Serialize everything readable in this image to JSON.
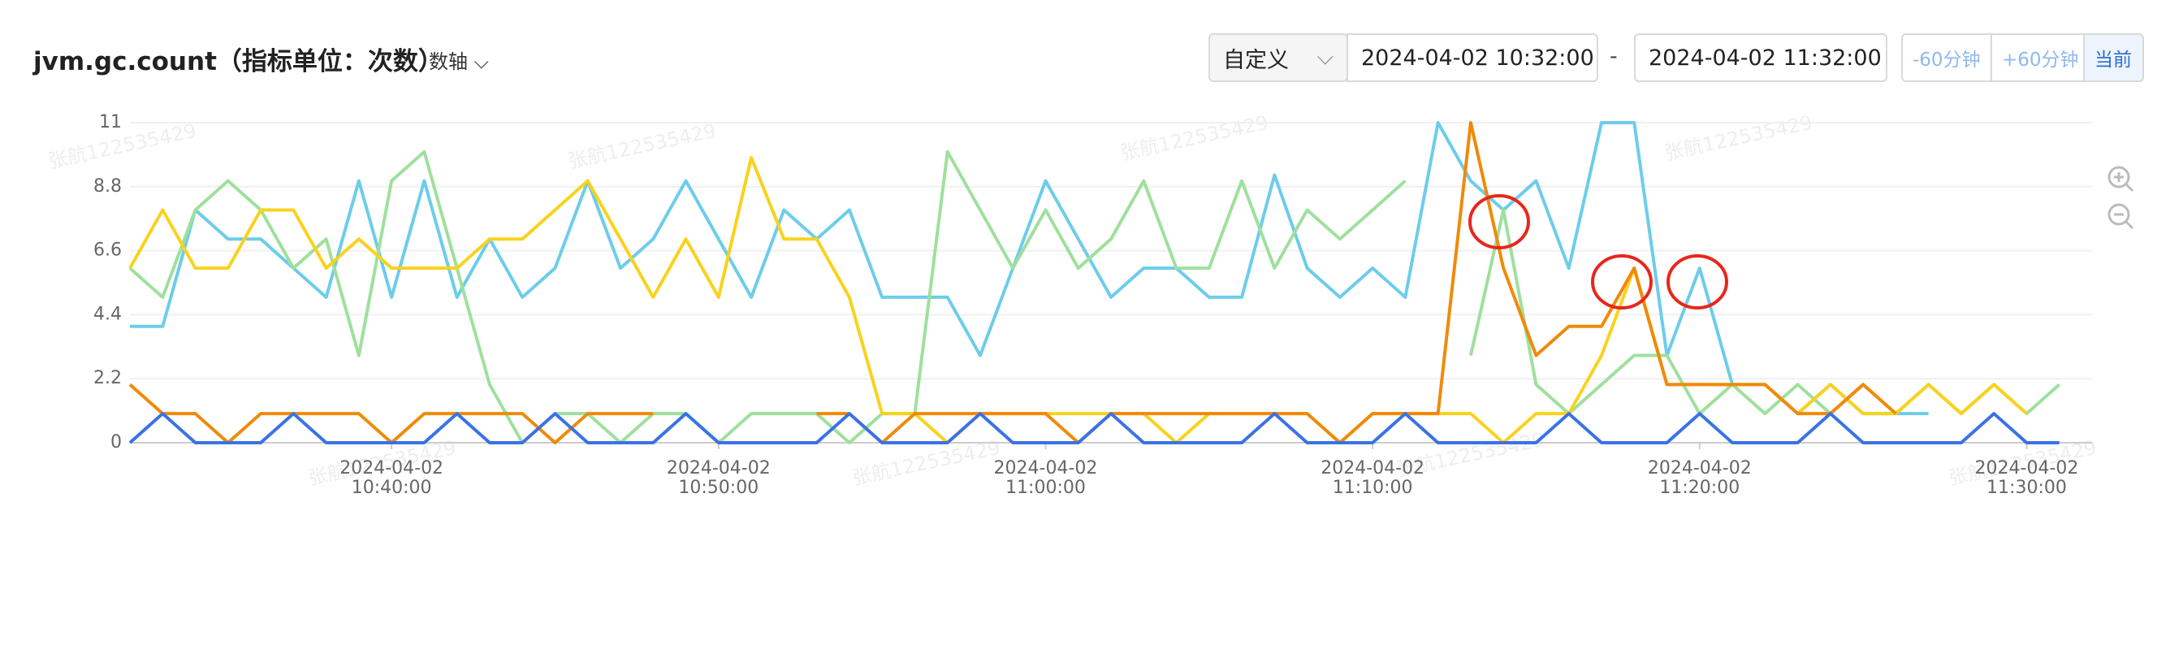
{
  "header": {
    "title": "jvm.gc.count（指标单位：次数）",
    "axis_toggle": "数轴",
    "range_mode": "自定义",
    "start_time": "2024-04-02 10:32:00",
    "separator": "-",
    "end_time": "2024-04-02 11:32:00",
    "buttons": [
      "-60分钟",
      "+60分钟",
      "当前"
    ]
  },
  "watermark": "张航122535429",
  "chart_data": {
    "type": "line",
    "categories": [
      "2024-04-02 10:32:00",
      "2024-04-02 10:33:00",
      "2024-04-02 10:34:00",
      "2024-04-02 10:35:00",
      "2024-04-02 10:36:00",
      "2024-04-02 10:37:00",
      "2024-04-02 10:38:00",
      "2024-04-02 10:39:00",
      "2024-04-02 10:40:00",
      "2024-04-02 10:41:00",
      "2024-04-02 10:42:00",
      "2024-04-02 10:43:00",
      "2024-04-02 10:44:00",
      "2024-04-02 10:45:00",
      "2024-04-02 10:46:00",
      "2024-04-02 10:47:00",
      "2024-04-02 10:48:00",
      "2024-04-02 10:49:00",
      "2024-04-02 10:50:00",
      "2024-04-02 10:51:00",
      "2024-04-02 10:52:00",
      "2024-04-02 10:53:00",
      "2024-04-02 10:54:00",
      "2024-04-02 10:55:00",
      "2024-04-02 10:56:00",
      "2024-04-02 10:57:00",
      "2024-04-02 10:58:00",
      "2024-04-02 10:59:00",
      "2024-04-02 11:00:00",
      "2024-04-02 11:01:00",
      "2024-04-02 11:02:00",
      "2024-04-02 11:03:00",
      "2024-04-02 11:04:00",
      "2024-04-02 11:05:00",
      "2024-04-02 11:06:00",
      "2024-04-02 11:07:00",
      "2024-04-02 11:08:00",
      "2024-04-02 11:09:00",
      "2024-04-02 11:10:00",
      "2024-04-02 11:11:00",
      "2024-04-02 11:12:00",
      "2024-04-02 11:13:00",
      "2024-04-02 11:14:00",
      "2024-04-02 11:15:00",
      "2024-04-02 11:16:00",
      "2024-04-02 11:17:00",
      "2024-04-02 11:18:00",
      "2024-04-02 11:19:00",
      "2024-04-02 11:20:00",
      "2024-04-02 11:21:00",
      "2024-04-02 11:22:00",
      "2024-04-02 11:23:00",
      "2024-04-02 11:24:00",
      "2024-04-02 11:25:00",
      "2024-04-02 11:26:00",
      "2024-04-02 11:27:00",
      "2024-04-02 11:28:00",
      "2024-04-02 11:29:00",
      "2024-04-02 11:30:00",
      "2024-04-02 11:31:00",
      "2024-04-02 11:32:00"
    ],
    "xticks": [
      "2024-04-02 10:40:00",
      "2024-04-02 10:50:00",
      "2024-04-02 11:00:00",
      "2024-04-02 11:10:00",
      "2024-04-02 11:20:00",
      "2024-04-02 11:30:00"
    ],
    "ylim": [
      0,
      11
    ],
    "yticks": [
      0,
      2.2,
      4.4,
      6.6,
      8.8,
      11
    ],
    "grid": true,
    "series": [
      {
        "color": "#6ccdea",
        "values": [
          4,
          4,
          8,
          7,
          7,
          6,
          5,
          9,
          5,
          9,
          5,
          7,
          5,
          6,
          9,
          6,
          7,
          9,
          7,
          5,
          8,
          7,
          8,
          5,
          5,
          5,
          3,
          6,
          9,
          7,
          5,
          6,
          6,
          5,
          5,
          9.2,
          6,
          5,
          6,
          5,
          11,
          9,
          8,
          9,
          6,
          11,
          11,
          3,
          6,
          2,
          2,
          1,
          2,
          1,
          1,
          1,
          null,
          null,
          null,
          null,
          null
        ]
      },
      {
        "color": "#9fe09c",
        "values": [
          6,
          5,
          8,
          9,
          8,
          6,
          7,
          3,
          9,
          10,
          6,
          2,
          0,
          1,
          1,
          0,
          1,
          1,
          0,
          1,
          1,
          1,
          0,
          1,
          1,
          10,
          8,
          6,
          8,
          6,
          7,
          9,
          6,
          6,
          9,
          6,
          8,
          7,
          8,
          9,
          null,
          3,
          8,
          2,
          1,
          2,
          3,
          3,
          1,
          2,
          1,
          2,
          1,
          2,
          1,
          2,
          1,
          2,
          1,
          2,
          null
        ]
      },
      {
        "color": "#f9d21c",
        "values": [
          6,
          8,
          6,
          6,
          8,
          8,
          6,
          7,
          6,
          6,
          6,
          7,
          7,
          8,
          9,
          7,
          5,
          7,
          5,
          9.8,
          7,
          7,
          5,
          1,
          1,
          0,
          1,
          1,
          1,
          1,
          1,
          1,
          0,
          1,
          1,
          1,
          1,
          0,
          1,
          1,
          1,
          1,
          0,
          1,
          1,
          3,
          6,
          2,
          2,
          2,
          2,
          1,
          2,
          1,
          1,
          2,
          1,
          2,
          1,
          null,
          null
        ]
      },
      {
        "color": "#f08a0a",
        "values": [
          2,
          1,
          1,
          0,
          1,
          1,
          1,
          1,
          0,
          1,
          1,
          1,
          1,
          0,
          1,
          1,
          1,
          null,
          null,
          null,
          null,
          1,
          1,
          0,
          1,
          1,
          1,
          1,
          1,
          0,
          1,
          1,
          1,
          1,
          1,
          1,
          1,
          0,
          1,
          1,
          1,
          11,
          6,
          3,
          4,
          4,
          6,
          2,
          2,
          2,
          2,
          1,
          1,
          2,
          1,
          null,
          null,
          null,
          null,
          null,
          null
        ]
      },
      {
        "color": "#3a72e6",
        "values": [
          0,
          1,
          0,
          0,
          0,
          1,
          0,
          0,
          0,
          0,
          1,
          0,
          0,
          1,
          0,
          0,
          0,
          1,
          0,
          0,
          0,
          0,
          1,
          0,
          0,
          0,
          1,
          0,
          0,
          0,
          1,
          0,
          0,
          0,
          0,
          1,
          0,
          0,
          0,
          1,
          0,
          0,
          0,
          0,
          1,
          0,
          0,
          0,
          1,
          0,
          0,
          0,
          1,
          0,
          0,
          0,
          0,
          1,
          0,
          0,
          null
        ]
      }
    ]
  }
}
